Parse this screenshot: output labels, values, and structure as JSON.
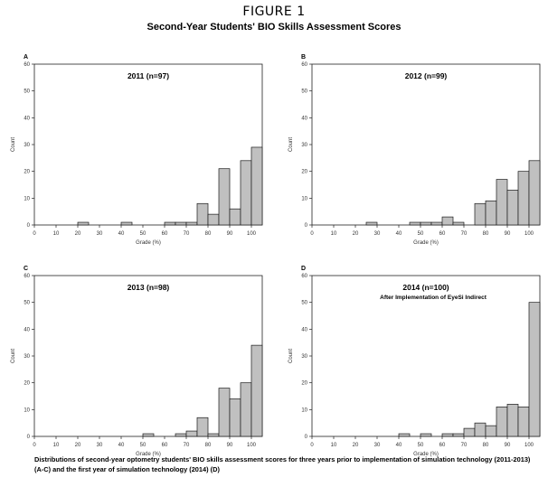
{
  "figure": {
    "title": "FIGURE 1",
    "subtitle": "Second-Year Students' BIO Skills Assessment Scores",
    "caption": "Distributions of second-year optometry students' BIO skills assessment scores for three years prior to implementation of simulation technology (2011-2013) (A-C) and the first year of simulation technology (2014) (D)"
  },
  "chart_data": [
    {
      "type": "bar",
      "panel": "A",
      "title": "2011 (n=97)",
      "xlabel": "Grade (%)",
      "ylabel": "Count",
      "xlim": [
        0,
        105
      ],
      "ylim": [
        0,
        60
      ],
      "xticks": [
        0,
        10,
        20,
        30,
        40,
        50,
        60,
        70,
        80,
        90,
        100
      ],
      "yticks": [
        0,
        10,
        20,
        30,
        40,
        50,
        60
      ],
      "bin_width": 5,
      "bins": [
        20,
        40,
        60,
        65,
        70,
        75,
        80,
        85,
        90,
        95,
        100
      ],
      "values": [
        1,
        1,
        1,
        1,
        1,
        8,
        4,
        21,
        6,
        24,
        29
      ]
    },
    {
      "type": "bar",
      "panel": "B",
      "title": "2012 (n=99)",
      "xlabel": "Grade (%)",
      "ylabel": "Count",
      "xlim": [
        0,
        105
      ],
      "ylim": [
        0,
        60
      ],
      "xticks": [
        0,
        10,
        20,
        30,
        40,
        50,
        60,
        70,
        80,
        90,
        100
      ],
      "yticks": [
        0,
        10,
        20,
        30,
        40,
        50,
        60
      ],
      "bin_width": 5,
      "bins": [
        25,
        45,
        50,
        55,
        60,
        65,
        75,
        80,
        85,
        90,
        95,
        100
      ],
      "values": [
        1,
        1,
        1,
        1,
        3,
        1,
        8,
        9,
        17,
        13,
        20,
        24
      ]
    },
    {
      "type": "bar",
      "panel": "C",
      "title": "2013 (n=98)",
      "xlabel": "Grade (%)",
      "ylabel": "Count",
      "xlim": [
        0,
        105
      ],
      "ylim": [
        0,
        60
      ],
      "xticks": [
        0,
        10,
        20,
        30,
        40,
        50,
        60,
        70,
        80,
        90,
        100
      ],
      "yticks": [
        0,
        10,
        20,
        30,
        40,
        50,
        60
      ],
      "bin_width": 5,
      "bins": [
        50,
        65,
        70,
        75,
        80,
        85,
        90,
        95,
        100
      ],
      "values": [
        1,
        1,
        2,
        7,
        1,
        18,
        14,
        20,
        34
      ]
    },
    {
      "type": "bar",
      "panel": "D",
      "title": "2014 (n=100)",
      "subtitle": "After Implementation of EyeSi Indirect",
      "xlabel": "Grade (%)",
      "ylabel": "Count",
      "xlim": [
        0,
        105
      ],
      "ylim": [
        0,
        60
      ],
      "xticks": [
        0,
        10,
        20,
        30,
        40,
        50,
        60,
        70,
        80,
        90,
        100
      ],
      "yticks": [
        0,
        10,
        20,
        30,
        40,
        50,
        60
      ],
      "bin_width": 5,
      "bins": [
        40,
        50,
        60,
        65,
        70,
        75,
        80,
        85,
        90,
        95,
        100
      ],
      "values": [
        1,
        1,
        1,
        1,
        3,
        5,
        4,
        11,
        12,
        11,
        50
      ]
    }
  ]
}
